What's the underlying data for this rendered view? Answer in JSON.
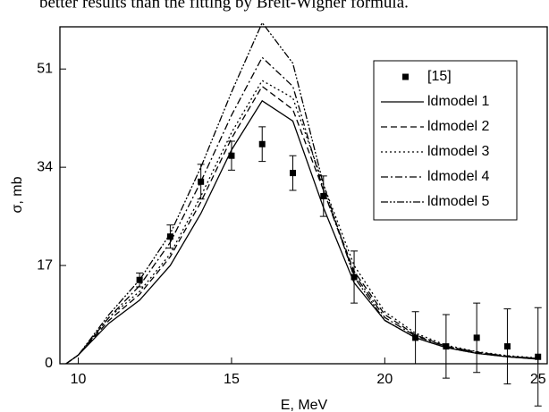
{
  "caption_fragment": "better results than the fitting by Breit-Wigner formula.",
  "chart_data": {
    "type": "line",
    "x_label": "E, MeV",
    "y_label": "σ, mb",
    "xlim": [
      9.4,
      25.3
    ],
    "ylim": [
      0,
      58.3
    ],
    "xticks": [
      10,
      15,
      20,
      25
    ],
    "yticks": [
      0,
      17,
      34,
      51
    ],
    "legend": "upper right",
    "series": [
      {
        "name": "[15]",
        "kind": "points",
        "color": "#000000",
        "x": [
          12,
          13,
          14,
          15,
          16,
          17,
          18,
          19,
          21,
          22,
          23,
          24,
          25
        ],
        "values": [
          14.5,
          22,
          31.5,
          36,
          38,
          33,
          29,
          15,
          4.5,
          3,
          4.5,
          3,
          1.2
        ],
        "errors": [
          1.2,
          2,
          3,
          2.5,
          3,
          3,
          3.5,
          4.5,
          4.5,
          5.5,
          6,
          6.5,
          8.5
        ]
      },
      {
        "name": "ldmodel 1",
        "kind": "line",
        "dash": "none",
        "color": "#000000",
        "x": [
          9.6,
          10,
          11,
          12,
          13,
          14,
          15,
          16,
          17,
          18,
          19,
          20,
          21,
          22,
          23,
          24,
          25
        ],
        "values": [
          0,
          1.5,
          7,
          11,
          17,
          26,
          37,
          45.5,
          42,
          27,
          14,
          7.5,
          4.5,
          2.8,
          1.8,
          1.2,
          0.8
        ]
      },
      {
        "name": "ldmodel 2",
        "kind": "line",
        "dash": "7 4",
        "color": "#000000",
        "x": [
          9.6,
          10,
          11,
          12,
          13,
          14,
          15,
          16,
          17,
          18,
          19,
          20,
          21,
          22,
          23,
          24,
          25
        ],
        "values": [
          0,
          1.5,
          7.5,
          12,
          18.5,
          28,
          39,
          48,
          44,
          30,
          16,
          8.5,
          5,
          3,
          2,
          1.3,
          0.9
        ]
      },
      {
        "name": "ldmodel 3",
        "kind": "line",
        "dash": "2 3",
        "color": "#000000",
        "x": [
          9.6,
          10,
          11,
          12,
          13,
          14,
          15,
          16,
          17,
          18,
          19,
          20,
          21,
          22,
          23,
          24,
          25
        ],
        "values": [
          0,
          1.5,
          8,
          12.5,
          19,
          29,
          40,
          49,
          46,
          31,
          17,
          9,
          5.3,
          3.2,
          2.1,
          1.4,
          1
        ]
      },
      {
        "name": "ldmodel 4",
        "kind": "line",
        "dash": "8 3 2 3",
        "color": "#000000",
        "x": [
          9.6,
          10,
          11,
          12,
          13,
          14,
          15,
          16,
          17,
          18,
          19,
          20,
          21,
          22,
          23,
          24,
          25
        ],
        "values": [
          0,
          1.5,
          8,
          13.5,
          21,
          31.5,
          43,
          53,
          48,
          30,
          15.5,
          8,
          4.8,
          3,
          2,
          1.3,
          0.9
        ]
      },
      {
        "name": "ldmodel 5",
        "kind": "line",
        "dash": "8 2 2 2 2 2",
        "color": "#000000",
        "x": [
          9.6,
          10,
          11,
          12,
          13,
          14,
          15,
          16,
          17,
          18,
          19,
          20,
          21,
          22,
          23,
          24,
          25
        ],
        "values": [
          0,
          1.5,
          8.5,
          14.5,
          22.5,
          34,
          47,
          59,
          52,
          31,
          15,
          7.5,
          4.5,
          2.8,
          1.8,
          1.2,
          0.8
        ]
      }
    ]
  }
}
